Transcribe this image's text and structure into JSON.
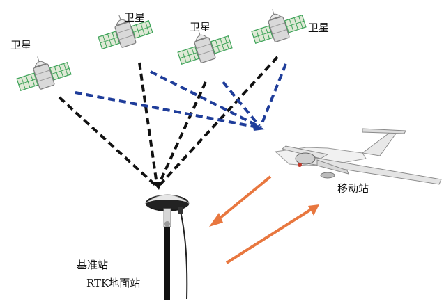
{
  "labels": {
    "satellite_1": "卫星",
    "satellite_2": "卫星",
    "satellite_3": "卫星",
    "satellite_4": "卫星",
    "rover": "移动站",
    "base_station": "基准站",
    "rtk_ground_station": "RTK地面站"
  },
  "colors": {
    "base_signal": "#111111",
    "rover_signal": "#1f3d9a",
    "datalink": "#e8773f",
    "satellite_panel": "#3fa45a"
  },
  "icons": {
    "satellite": "satellite-icon",
    "rover": "uav-icon",
    "base": "gnss-antenna-icon"
  }
}
